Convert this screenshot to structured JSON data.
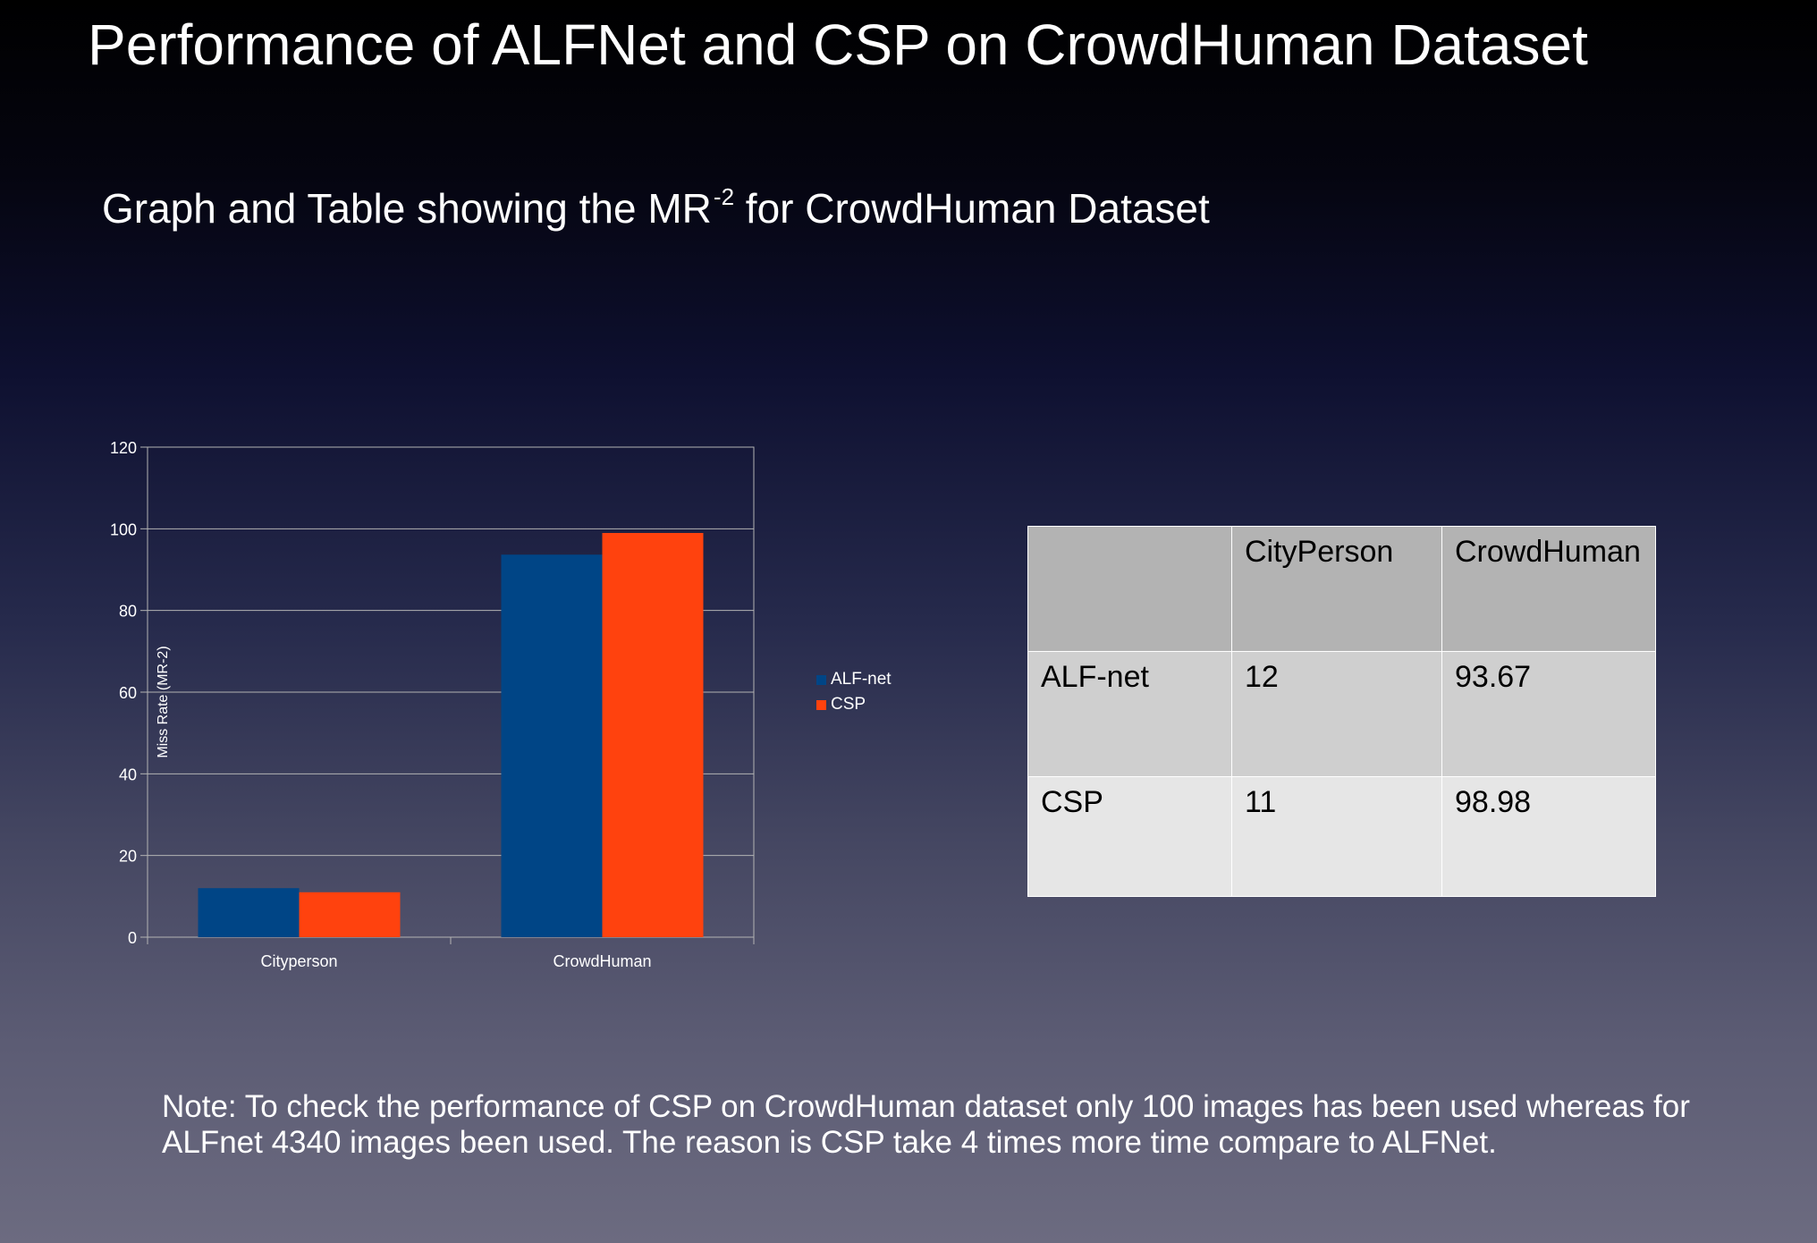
{
  "slide": {
    "title": "Performance of ALFNet and CSP on CrowdHuman Dataset",
    "subtitle_main": "Graph and Table showing  the MR",
    "subtitle_sup": "-2",
    "subtitle_tail": " for CrowdHuman Dataset",
    "note": "Note: To check the performance of CSP on CrowdHuman dataset only 100 images has been used whereas for ALFnet 4340 images been used. The reason is CSP take 4 times more time compare to ALFNet."
  },
  "chart_data": {
    "type": "bar",
    "categories": [
      "Cityperson",
      "CrowdHuman"
    ],
    "series": [
      {
        "name": "ALF-net",
        "values": [
          12,
          93.67
        ],
        "color": "#004586"
      },
      {
        "name": "CSP",
        "values": [
          11,
          98.98
        ],
        "color": "#ff420e"
      }
    ],
    "ylabel": "Miss Rate (MR-2)",
    "xlabel": "",
    "ylim": [
      0,
      120
    ],
    "yticks": [
      0,
      20,
      40,
      60,
      80,
      100,
      120
    ],
    "grid": true,
    "legend": "right"
  },
  "table": {
    "headers": [
      "",
      "CityPerson",
      "CrowdHuman"
    ],
    "rows": [
      [
        "ALF-net",
        "12",
        "93.67"
      ],
      [
        "CSP",
        "11",
        "98.98"
      ]
    ]
  }
}
